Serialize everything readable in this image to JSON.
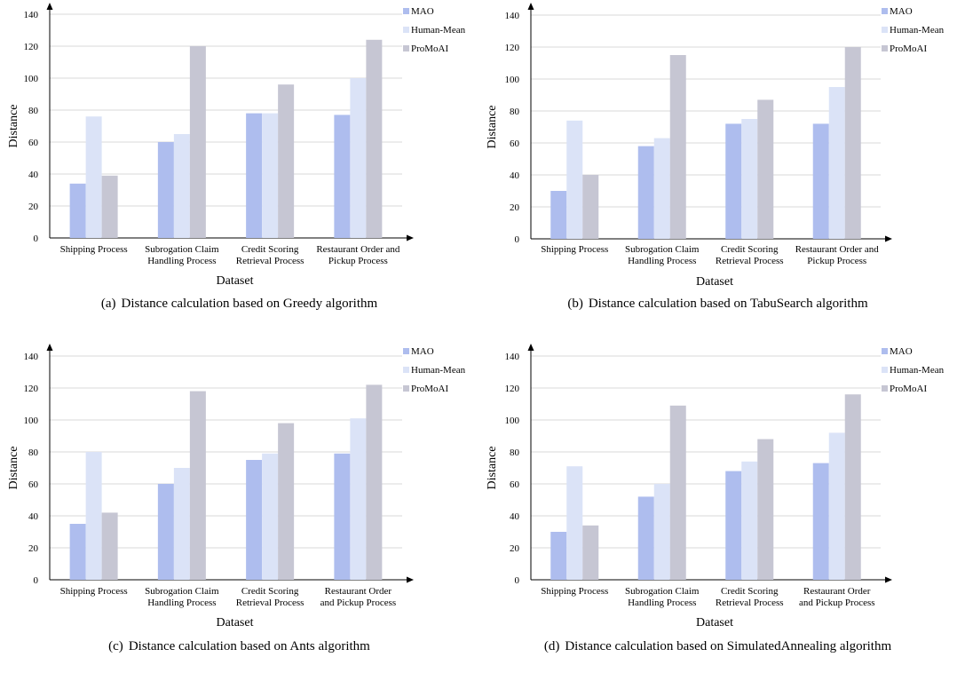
{
  "colors": {
    "MAO": "#aebdee",
    "Human-Mean": "#dbe3f7",
    "ProMoAI": "#c6c6d3"
  },
  "chart_data": [
    {
      "type": "bar",
      "panel_label": "(a)",
      "caption": "Distance calculation based on Greedy algorithm",
      "xlabel": "Dataset",
      "ylabel": "Distance",
      "ylim": [
        0,
        140
      ],
      "yticks": [
        "0",
        "20",
        "40",
        "60",
        "80",
        "100",
        "120",
        "140"
      ],
      "categories": [
        [
          "Shipping Process"
        ],
        [
          "Subrogation Claim",
          "Handling Process"
        ],
        [
          "Credit Scoring",
          "Retrieval Process"
        ],
        [
          "Restaurant Order and",
          "Pickup Process"
        ]
      ],
      "series": [
        {
          "name": "MAO",
          "values": [
            34,
            60,
            78,
            77
          ]
        },
        {
          "name": "Human-Mean",
          "values": [
            76,
            65,
            78,
            100
          ]
        },
        {
          "name": "ProMoAI",
          "values": [
            39,
            120,
            96,
            124
          ]
        }
      ],
      "legend": "top-right",
      "grid": true
    },
    {
      "type": "bar",
      "panel_label": "(b)",
      "caption": "Distance calculation based on TabuSearch algorithm",
      "xlabel": "Dataset",
      "ylabel": "Distance",
      "ylim": [
        0,
        140
      ],
      "yticks": [
        "0",
        "20",
        "40",
        "60",
        "80",
        "100",
        "120",
        "140"
      ],
      "categories": [
        [
          "Shipping Process"
        ],
        [
          "Subrogation Claim",
          "Handling Process"
        ],
        [
          "Credit Scoring",
          "Retrieval Process"
        ],
        [
          "Restaurant Order and",
          "Pickup Process"
        ]
      ],
      "series": [
        {
          "name": "MAO",
          "values": [
            30,
            58,
            72,
            72
          ]
        },
        {
          "name": "Human-Mean",
          "values": [
            74,
            63,
            75,
            95
          ]
        },
        {
          "name": "ProMoAI",
          "values": [
            40,
            115,
            87,
            120
          ]
        }
      ],
      "legend": "top-right",
      "grid": true
    },
    {
      "type": "bar",
      "panel_label": "(c)",
      "caption": "Distance calculation based on Ants algorithm",
      "xlabel": "Dataset",
      "ylabel": "Distance",
      "ylim": [
        0,
        140
      ],
      "yticks": [
        "0",
        "20",
        "40",
        "60",
        "80",
        "100",
        "120",
        "140"
      ],
      "categories": [
        [
          "Shipping Process"
        ],
        [
          "Subrogation Claim",
          "Handling Process"
        ],
        [
          "Credit Scoring",
          "Retrieval Process"
        ],
        [
          "Restaurant Order",
          "and Pickup Process"
        ]
      ],
      "series": [
        {
          "name": "MAO",
          "values": [
            35,
            60,
            75,
            79
          ]
        },
        {
          "name": "Human-Mean",
          "values": [
            80,
            70,
            79,
            101
          ]
        },
        {
          "name": "ProMoAI",
          "values": [
            42,
            118,
            98,
            122
          ]
        }
      ],
      "legend": "top-right",
      "grid": true
    },
    {
      "type": "bar",
      "panel_label": "(d)",
      "caption": "Distance calculation based on SimulatedAnnealing algorithm",
      "xlabel": "Dataset",
      "ylabel": "Distance",
      "ylim": [
        0,
        140
      ],
      "yticks": [
        "0",
        "20",
        "40",
        "60",
        "80",
        "100",
        "120",
        "140"
      ],
      "categories": [
        [
          "Shipping Process"
        ],
        [
          "Subrogation Claim",
          "Handling Process"
        ],
        [
          "Credit Scoring",
          "Retrieval Process"
        ],
        [
          "Restaurant Order",
          "and Pickup Process"
        ]
      ],
      "series": [
        {
          "name": "MAO",
          "values": [
            30,
            52,
            68,
            73
          ]
        },
        {
          "name": "Human-Mean",
          "values": [
            71,
            60,
            74,
            92
          ]
        },
        {
          "name": "ProMoAI",
          "values": [
            34,
            109,
            88,
            116
          ]
        }
      ],
      "legend": "top-right",
      "grid": true
    }
  ]
}
